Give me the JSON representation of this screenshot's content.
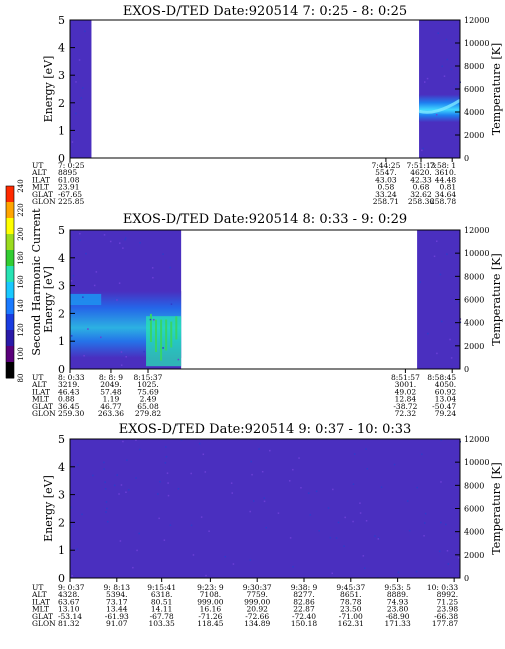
{
  "chart_data": [
    {
      "type": "heatmap",
      "title": "EXOS-D/TED   Date:920514  7: 0:25 - 8: 0:25",
      "ylabel": "Energy [eV]",
      "ylabel_right": "Temperature [K]",
      "ylim": [
        0,
        5
      ],
      "yticks": [
        "0",
        "1",
        "2",
        "3",
        "4",
        "5"
      ],
      "ylim_right": [
        0,
        12000
      ],
      "yticks_right": [
        "0",
        "2000",
        "4000",
        "6000",
        "8000",
        "10000",
        "12000"
      ],
      "data_spans": [
        [
          0.0,
          0.055
        ],
        [
          0.895,
          1.0
        ]
      ],
      "band": {
        "from": 0.895,
        "to": 1.0,
        "energy_low": 1.3,
        "energy_high": 2.3,
        "peak_energy": 1.8
      },
      "ephemeris": {
        "labels": [
          "UT",
          "ALT",
          "ILAT",
          "MLT",
          "GLAT",
          "GLON"
        ],
        "columns": [
          {
            "pos": 0.0,
            "values": [
              "7: 0:25",
              "8895",
              "61.08",
              "23.91",
              "-67.65",
              "225.85"
            ]
          },
          {
            "pos": 0.81,
            "values": [
              "7:44:25",
              "5547.",
              "43.03",
              "0.58",
              "33.24",
              "258.71"
            ]
          },
          {
            "pos": 0.9,
            "values": [
              "7:51:13",
              "4620.",
              "42.33",
              "0.68",
              "32.62",
              "258.36"
            ]
          },
          {
            "pos": 0.98,
            "values": [
              "7:58: 1",
              "3610.",
              "44.48",
              "0.81",
              "34.64",
              "258.78"
            ]
          }
        ]
      }
    },
    {
      "type": "heatmap",
      "title": "EXOS-D/TED   Date:920514  8: 0:33 - 9: 0:29",
      "ylabel": "Energy [eV]",
      "ylabel_right": "Temperature [K]",
      "ylim": [
        0,
        5
      ],
      "yticks": [
        "0",
        "1",
        "2",
        "3",
        "4",
        "5"
      ],
      "ylim_right": [
        0,
        12000
      ],
      "yticks_right": [
        "0",
        "2000",
        "4000",
        "6000",
        "8000",
        "10000",
        "12000"
      ],
      "data_spans": [
        [
          0.0,
          0.285
        ],
        [
          0.89,
          1.0
        ]
      ],
      "band": {
        "from": 0.0,
        "to": 0.285,
        "energy_low": 0.4,
        "energy_high": 2.8,
        "peak_energy": 1.6
      },
      "colorbar": {
        "label": "Second Harmonic Current",
        "ticks": [
          "80",
          "100",
          "120",
          "140",
          "160",
          "180",
          "200",
          "220",
          "240"
        ],
        "colors": [
          "#000000",
          "#5a007a",
          "#2a1aa8",
          "#1a3ce0",
          "#1a7aff",
          "#19c8ff",
          "#27e3b4",
          "#32cd32",
          "#9bdc1e",
          "#ffff00",
          "#ffa500",
          "#ff2a00"
        ]
      },
      "ephemeris": {
        "labels": [
          "UT",
          "ALT",
          "ILAT",
          "MLT",
          "GLAT",
          "GLON"
        ],
        "columns": [
          {
            "pos": 0.0,
            "values": [
              "8: 0:33",
              "3219.",
              "46.43",
              "0.88",
              "36.45",
              "259.30"
            ]
          },
          {
            "pos": 0.105,
            "values": [
              "8: 8: 9",
              "2049.",
              "57.48",
              "1.19",
              "46.77",
              "263.36"
            ]
          },
          {
            "pos": 0.2,
            "values": [
              "8:15:37",
              "1025.",
              "75.69",
              "2.49",
              "65.08",
              "279.82"
            ]
          },
          {
            "pos": 0.86,
            "values": [
              "8:51:57",
              "3001.",
              "49.02",
              "12.84",
              "-38.72",
              "72.32"
            ]
          },
          {
            "pos": 0.98,
            "values": [
              "8:58:45",
              "4050.",
              "60.92",
              "13.04",
              "-50.47",
              "79.24"
            ]
          }
        ]
      }
    },
    {
      "type": "heatmap",
      "title": "EXOS-D/TED   Date:920514  9: 0:37 - 10: 0:33",
      "ylabel": "Energy [eV]",
      "ylabel_right": "Temperature [K]",
      "ylim": [
        0,
        5
      ],
      "yticks": [
        "0",
        "1",
        "2",
        "3",
        "4",
        "5"
      ],
      "ylim_right": [
        0,
        12000
      ],
      "yticks_right": [
        "0",
        "2000",
        "4000",
        "6000",
        "8000",
        "10000",
        "12000"
      ],
      "data_spans": [
        [
          0.0,
          1.0
        ]
      ],
      "ephemeris": {
        "labels": [
          "UT",
          "ALT",
          "ILAT",
          "MLT",
          "GLAT",
          "GLON"
        ],
        "columns": [
          {
            "pos": 0.0,
            "values": [
              "9: 0:37",
              "4328.",
              "63.67",
              "13.10",
              "-53.14",
              "81.32"
            ]
          },
          {
            "pos": 0.12,
            "values": [
              "9: 8:13",
              "5394.",
              "73.17",
              "13.44",
              "-61.93",
              "91.07"
            ]
          },
          {
            "pos": 0.235,
            "values": [
              "9:15:41",
              "6318.",
              "80.51",
              "14.11",
              "-67.78",
              "103.35"
            ]
          },
          {
            "pos": 0.36,
            "values": [
              "9:23: 9",
              "7108.",
              "999.00",
              "16.16",
              "-71.26",
              "118.45"
            ]
          },
          {
            "pos": 0.48,
            "values": [
              "9:30:37",
              "7759.",
              "999.00",
              "20.92",
              "-72.66",
              "134.89"
            ]
          },
          {
            "pos": 0.6,
            "values": [
              "9:38: 9",
              "8277.",
              "82.86",
              "22.87",
              "-72.40",
              "150.18"
            ]
          },
          {
            "pos": 0.72,
            "values": [
              "9:45:37",
              "8651.",
              "78.78",
              "23.50",
              "-71.00",
              "162.31"
            ]
          },
          {
            "pos": 0.84,
            "values": [
              "9:53: 5",
              "8889.",
              "74.93",
              "23.80",
              "-68.90",
              "171.33"
            ]
          },
          {
            "pos": 0.985,
            "values": [
              "10: 0:33",
              "8992.",
              "71.25",
              "23.98",
              "-66.38",
              "177.87"
            ]
          }
        ]
      }
    }
  ],
  "colors": {
    "background_fill": "#4a2fbf",
    "band_mid": "#1e7ff0",
    "band_peak": "#3fd8ff",
    "auroral_green": "#36d46a"
  }
}
